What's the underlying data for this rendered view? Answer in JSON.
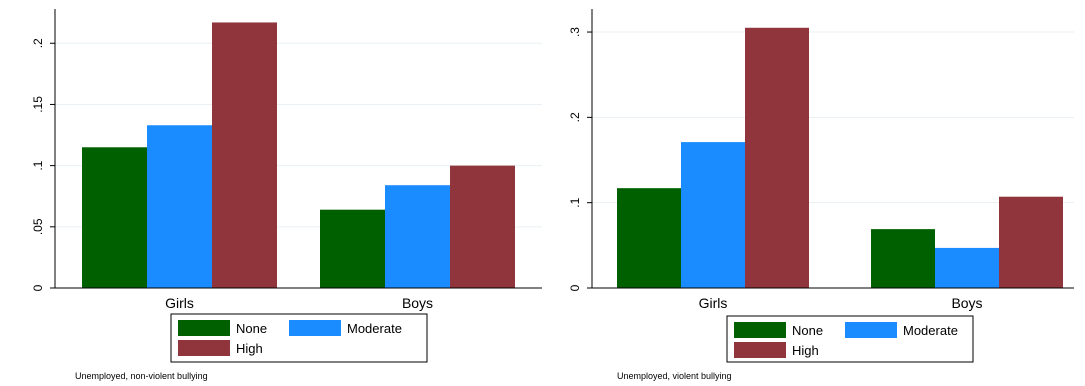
{
  "chart_data": [
    {
      "type": "bar",
      "categories": [
        "Girls",
        "Boys"
      ],
      "series": [
        {
          "name": "None",
          "color": "#006000",
          "values": [
            0.115,
            0.064
          ]
        },
        {
          "name": "Moderate",
          "color": "#1a8cff",
          "values": [
            0.133,
            0.084
          ]
        },
        {
          "name": "High",
          "color": "#90353b",
          "values": [
            0.217,
            0.1
          ]
        }
      ],
      "ylim": [
        0,
        0.228
      ],
      "yticks": [
        0,
        0.05,
        0.1,
        0.15,
        0.2
      ],
      "ytick_labels": [
        "0",
        ".05",
        ".1",
        ".15",
        ".2"
      ],
      "grid": true,
      "legend": "bottom",
      "note": "Unemployed,  non-violent bullying"
    },
    {
      "type": "bar",
      "categories": [
        "Girls",
        "Boys"
      ],
      "series": [
        {
          "name": "None",
          "color": "#006000",
          "values": [
            0.117,
            0.069
          ]
        },
        {
          "name": "Moderate",
          "color": "#1a8cff",
          "values": [
            0.171,
            0.047
          ]
        },
        {
          "name": "High",
          "color": "#90353b",
          "values": [
            0.305,
            0.107
          ]
        }
      ],
      "ylim": [
        0,
        0.327
      ],
      "yticks": [
        0,
        0.1,
        0.2,
        0.3
      ],
      "ytick_labels": [
        "0",
        ".1",
        ".2",
        ".3"
      ],
      "grid": true,
      "legend": "bottom",
      "note": "Unemployed, violent bullying"
    }
  ]
}
